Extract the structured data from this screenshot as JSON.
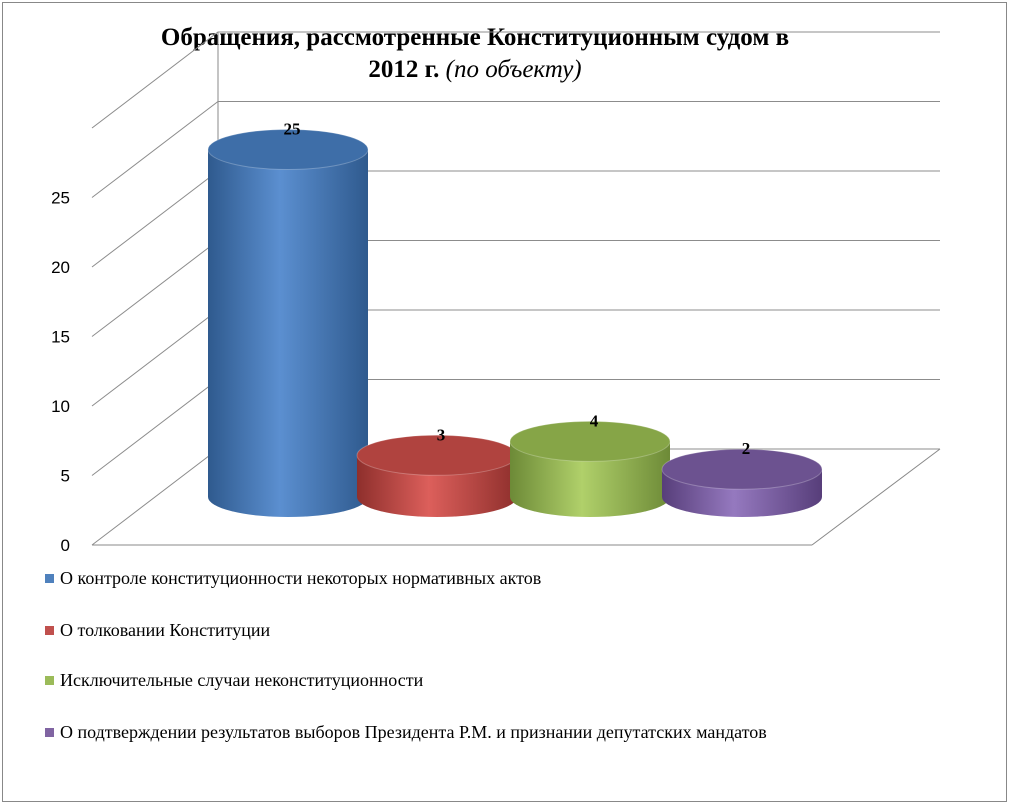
{
  "chart_data": {
    "type": "bar",
    "title": "Обращения, рассмотренные Конституционным судом в",
    "title_line2": "2012 г.",
    "subtitle": "(по объекту)",
    "categories": [
      "О контроле конституционности некоторых нормативных актов",
      "О толковании Конституции",
      "Исключительные случаи неконституционности",
      "О подтверждении результатов выборов Президента Р.М. и признании депутатских мандатов"
    ],
    "values": [
      25,
      3,
      4,
      2
    ],
    "data_labels": [
      "25",
      "3",
      "4",
      "2"
    ],
    "yticks": [
      "0",
      "5",
      "10",
      "15",
      "20",
      "25"
    ],
    "ylim": [
      0,
      30
    ],
    "grid": true,
    "legend_position": "bottom-left",
    "colors": [
      "#4F81BD",
      "#C0504D",
      "#9BBB59",
      "#8064A2"
    ]
  }
}
